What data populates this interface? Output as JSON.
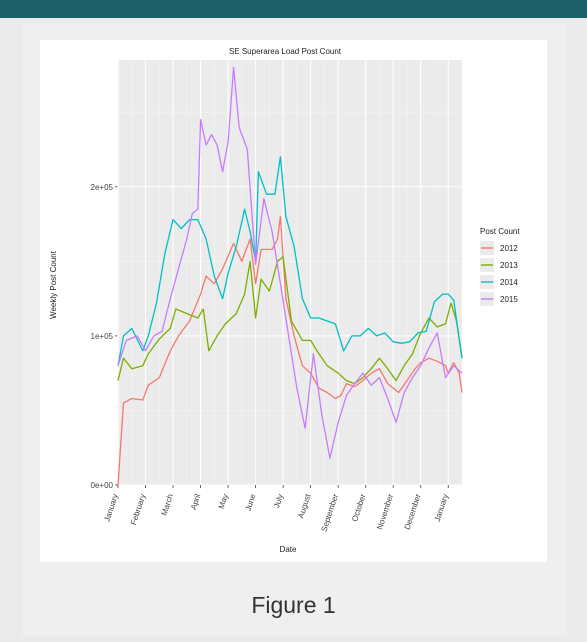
{
  "figure": {
    "caption": "Figure 1"
  },
  "colors": {
    "header_bar": "#1e6068",
    "panel_background": "#ebebeb",
    "grid": "#ffffff"
  },
  "chart_data": {
    "type": "line",
    "title": "SE Superarea Load Post Count",
    "xlabel": "Date",
    "ylabel": "Weekly Post Count",
    "x_ticks": [
      "January",
      "February",
      "March",
      "April",
      "May",
      "June",
      "July",
      "August",
      "September",
      "October",
      "November",
      "December",
      "January"
    ],
    "y_ticks": [
      "0e+00",
      "1e+05",
      "2e+05"
    ],
    "ylim": [
      0,
      285000
    ],
    "grid": true,
    "legend": {
      "title": "Post Count",
      "position": "right"
    },
    "series": [
      {
        "name": "2012",
        "color": "#f8766d",
        "points": [
          [
            0,
            0
          ],
          [
            0.2,
            55000
          ],
          [
            0.5,
            58000
          ],
          [
            0.9,
            57000
          ],
          [
            1.1,
            67000
          ],
          [
            1.5,
            72000
          ],
          [
            1.9,
            90000
          ],
          [
            2.2,
            100000
          ],
          [
            2.6,
            110000
          ],
          [
            3.0,
            128000
          ],
          [
            3.2,
            140000
          ],
          [
            3.5,
            135000
          ],
          [
            3.8,
            145000
          ],
          [
            4.2,
            162000
          ],
          [
            4.5,
            150000
          ],
          [
            4.8,
            165000
          ],
          [
            5.0,
            135000
          ],
          [
            5.2,
            158000
          ],
          [
            5.6,
            158000
          ],
          [
            5.8,
            165000
          ],
          [
            5.9,
            180000
          ],
          [
            6.1,
            125000
          ],
          [
            6.4,
            100000
          ],
          [
            6.7,
            80000
          ],
          [
            7.0,
            75000
          ],
          [
            7.3,
            65000
          ],
          [
            7.6,
            62000
          ],
          [
            7.9,
            58000
          ],
          [
            8.1,
            60000
          ],
          [
            8.3,
            68000
          ],
          [
            8.6,
            66000
          ],
          [
            8.9,
            70000
          ],
          [
            9.2,
            75000
          ],
          [
            9.5,
            78000
          ],
          [
            9.8,
            68000
          ],
          [
            10.2,
            62000
          ],
          [
            10.5,
            70000
          ],
          [
            10.8,
            78000
          ],
          [
            11.0,
            82000
          ],
          [
            11.3,
            85000
          ],
          [
            11.6,
            83000
          ],
          [
            11.9,
            80000
          ],
          [
            12.0,
            75000
          ],
          [
            12.2,
            82000
          ],
          [
            12.4,
            75000
          ],
          [
            12.5,
            62000
          ]
        ]
      },
      {
        "name": "2013",
        "color": "#7cae00",
        "points": [
          [
            0,
            70000
          ],
          [
            0.2,
            85000
          ],
          [
            0.5,
            78000
          ],
          [
            0.9,
            80000
          ],
          [
            1.1,
            88000
          ],
          [
            1.5,
            98000
          ],
          [
            1.9,
            105000
          ],
          [
            2.1,
            118000
          ],
          [
            2.5,
            115000
          ],
          [
            2.9,
            112000
          ],
          [
            3.1,
            118000
          ],
          [
            3.3,
            90000
          ],
          [
            3.6,
            100000
          ],
          [
            3.9,
            108000
          ],
          [
            4.3,
            115000
          ],
          [
            4.6,
            128000
          ],
          [
            4.8,
            150000
          ],
          [
            5.0,
            112000
          ],
          [
            5.2,
            138000
          ],
          [
            5.5,
            130000
          ],
          [
            5.8,
            150000
          ],
          [
            6.0,
            153000
          ],
          [
            6.3,
            110000
          ],
          [
            6.7,
            97000
          ],
          [
            7.0,
            97000
          ],
          [
            7.3,
            88000
          ],
          [
            7.6,
            80000
          ],
          [
            8.0,
            75000
          ],
          [
            8.3,
            70000
          ],
          [
            8.6,
            68000
          ],
          [
            8.9,
            72000
          ],
          [
            9.2,
            78000
          ],
          [
            9.5,
            85000
          ],
          [
            9.8,
            78000
          ],
          [
            10.1,
            70000
          ],
          [
            10.4,
            80000
          ],
          [
            10.7,
            88000
          ],
          [
            11.0,
            102000
          ],
          [
            11.3,
            112000
          ],
          [
            11.6,
            106000
          ],
          [
            11.9,
            108000
          ],
          [
            12.1,
            122000
          ],
          [
            12.3,
            110000
          ],
          [
            12.5,
            85000
          ]
        ]
      },
      {
        "name": "2014",
        "color": "#00bfc4",
        "points": [
          [
            0,
            80000
          ],
          [
            0.2,
            100000
          ],
          [
            0.5,
            105000
          ],
          [
            0.9,
            90000
          ],
          [
            1.1,
            100000
          ],
          [
            1.4,
            122000
          ],
          [
            1.7,
            155000
          ],
          [
            2.0,
            178000
          ],
          [
            2.3,
            172000
          ],
          [
            2.6,
            178000
          ],
          [
            2.9,
            178000
          ],
          [
            3.2,
            165000
          ],
          [
            3.5,
            140000
          ],
          [
            3.8,
            125000
          ],
          [
            4.0,
            142000
          ],
          [
            4.3,
            160000
          ],
          [
            4.6,
            185000
          ],
          [
            4.8,
            170000
          ],
          [
            5.0,
            150000
          ],
          [
            5.1,
            210000
          ],
          [
            5.4,
            195000
          ],
          [
            5.7,
            195000
          ],
          [
            5.9,
            220000
          ],
          [
            6.1,
            180000
          ],
          [
            6.4,
            160000
          ],
          [
            6.7,
            125000
          ],
          [
            7.0,
            112000
          ],
          [
            7.3,
            112000
          ],
          [
            7.6,
            110000
          ],
          [
            7.9,
            108000
          ],
          [
            8.2,
            90000
          ],
          [
            8.5,
            100000
          ],
          [
            8.8,
            100000
          ],
          [
            9.1,
            105000
          ],
          [
            9.4,
            100000
          ],
          [
            9.7,
            102000
          ],
          [
            10.0,
            96000
          ],
          [
            10.3,
            95000
          ],
          [
            10.6,
            96000
          ],
          [
            10.9,
            102000
          ],
          [
            11.2,
            103000
          ],
          [
            11.5,
            123000
          ],
          [
            11.8,
            128000
          ],
          [
            12.0,
            128000
          ],
          [
            12.2,
            124000
          ],
          [
            12.5,
            85000
          ]
        ]
      },
      {
        "name": "2015",
        "color": "#c77cff",
        "points": [
          [
            0,
            80000
          ],
          [
            0.3,
            97000
          ],
          [
            0.7,
            100000
          ],
          [
            1.0,
            90000
          ],
          [
            1.3,
            100000
          ],
          [
            1.6,
            103000
          ],
          [
            1.9,
            125000
          ],
          [
            2.2,
            145000
          ],
          [
            2.5,
            165000
          ],
          [
            2.7,
            182000
          ],
          [
            2.9,
            185000
          ],
          [
            3.0,
            245000
          ],
          [
            3.2,
            228000
          ],
          [
            3.4,
            235000
          ],
          [
            3.6,
            228000
          ],
          [
            3.8,
            210000
          ],
          [
            4.0,
            230000
          ],
          [
            4.2,
            280000
          ],
          [
            4.4,
            240000
          ],
          [
            4.7,
            225000
          ],
          [
            5.0,
            148000
          ],
          [
            5.3,
            192000
          ],
          [
            5.6,
            170000
          ],
          [
            5.9,
            135000
          ],
          [
            6.2,
            100000
          ],
          [
            6.5,
            65000
          ],
          [
            6.8,
            38000
          ],
          [
            7.1,
            88000
          ],
          [
            7.4,
            48000
          ],
          [
            7.7,
            18000
          ],
          [
            8.0,
            42000
          ],
          [
            8.3,
            60000
          ],
          [
            8.6,
            68000
          ],
          [
            8.9,
            75000
          ],
          [
            9.2,
            67000
          ],
          [
            9.5,
            72000
          ],
          [
            9.8,
            58000
          ],
          [
            10.1,
            42000
          ],
          [
            10.4,
            62000
          ],
          [
            10.7,
            72000
          ],
          [
            11.0,
            80000
          ],
          [
            11.3,
            92000
          ],
          [
            11.6,
            102000
          ],
          [
            11.9,
            72000
          ],
          [
            12.2,
            80000
          ],
          [
            12.5,
            75000
          ]
        ]
      }
    ]
  }
}
